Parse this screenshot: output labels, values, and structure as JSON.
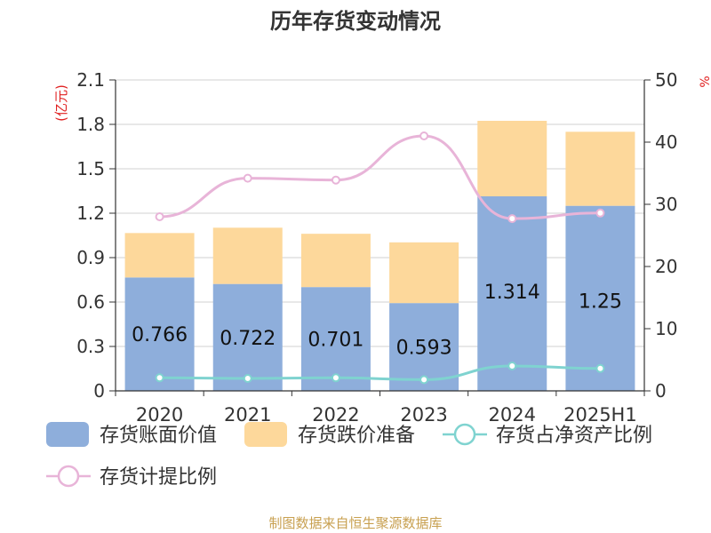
{
  "chart_data": {
    "type": "bar",
    "title": "历年存货变动情况",
    "ylabel_left": "(亿元)",
    "ylabel_right": "%",
    "ylim_left": [
      0,
      2.1
    ],
    "yticks_left": [
      "0",
      "0.3",
      "0.6",
      "0.9",
      "1.2",
      "1.5",
      "1.8",
      "2.1"
    ],
    "ylim_right": [
      0,
      50
    ],
    "yticks_right": [
      "0",
      "10",
      "20",
      "30",
      "40",
      "50"
    ],
    "categories": [
      "2020",
      "2021",
      "2022",
      "2023",
      "2024",
      "2025H1"
    ],
    "stacked_bars": [
      {
        "name": "存货账面价值",
        "color": "#8eaedb",
        "axis": "left",
        "values": [
          0.766,
          0.722,
          0.701,
          0.593,
          1.314,
          1.25
        ],
        "labels": [
          "0.766",
          "0.722",
          "0.701",
          "0.593",
          "1.314",
          "1.25"
        ]
      },
      {
        "name": "存货跌价准备",
        "color": "#fdd89b",
        "axis": "left",
        "values": [
          0.3,
          0.38,
          0.36,
          0.41,
          0.51,
          0.5
        ]
      }
    ],
    "lines": [
      {
        "name": "存货占净资产比例",
        "color": "#7fd3d0",
        "axis": "right",
        "values": [
          2.1,
          2.0,
          2.1,
          1.8,
          4.0,
          3.6
        ]
      },
      {
        "name": "存货计提比例",
        "color": "#e8b4d8",
        "axis": "right",
        "values": [
          28.0,
          34.2,
          33.9,
          41.0,
          27.7,
          28.6
        ]
      }
    ],
    "legend_position": "bottom",
    "grid": true,
    "source": "制图数据来自恒生聚源数据库"
  }
}
